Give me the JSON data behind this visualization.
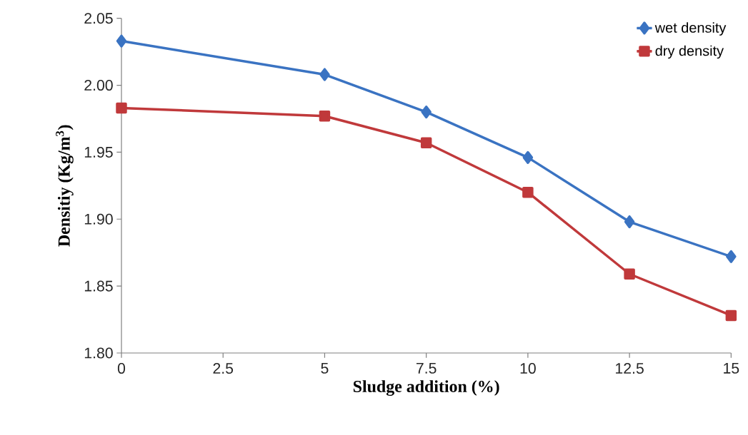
{
  "chart_data": {
    "type": "line",
    "xlabel": "Sludge addition  (%)",
    "ylabel": "Densitiy (Kg/m$^{3}$)",
    "x": [
      0,
      5,
      7.5,
      10,
      12.5,
      15
    ],
    "series": [
      {
        "name": "wet density",
        "color": "#3a73c2",
        "marker": "diamond",
        "values": [
          2.033,
          2.008,
          1.98,
          1.946,
          1.898,
          1.872
        ]
      },
      {
        "name": "dry density",
        "color": "#c0393b",
        "marker": "square",
        "values": [
          1.983,
          1.977,
          1.957,
          1.92,
          1.859,
          1.828
        ]
      }
    ],
    "xlim": [
      0,
      15
    ],
    "xticks": [
      0,
      2.5,
      5,
      7.5,
      10,
      12.5,
      15
    ],
    "ylim": [
      1.8,
      2.05
    ],
    "yticks": [
      {
        "value": 1.8,
        "label": "1.80"
      },
      {
        "value": 1.85,
        "label": "1.85"
      },
      {
        "value": 1.9,
        "label": "1.90"
      },
      {
        "value": 1.95,
        "label": "1.95"
      },
      {
        "value": 2.0,
        "label": "2.00"
      },
      {
        "value": 2.05,
        "label": "2.05"
      }
    ],
    "legend": "top right",
    "grid": false
  }
}
